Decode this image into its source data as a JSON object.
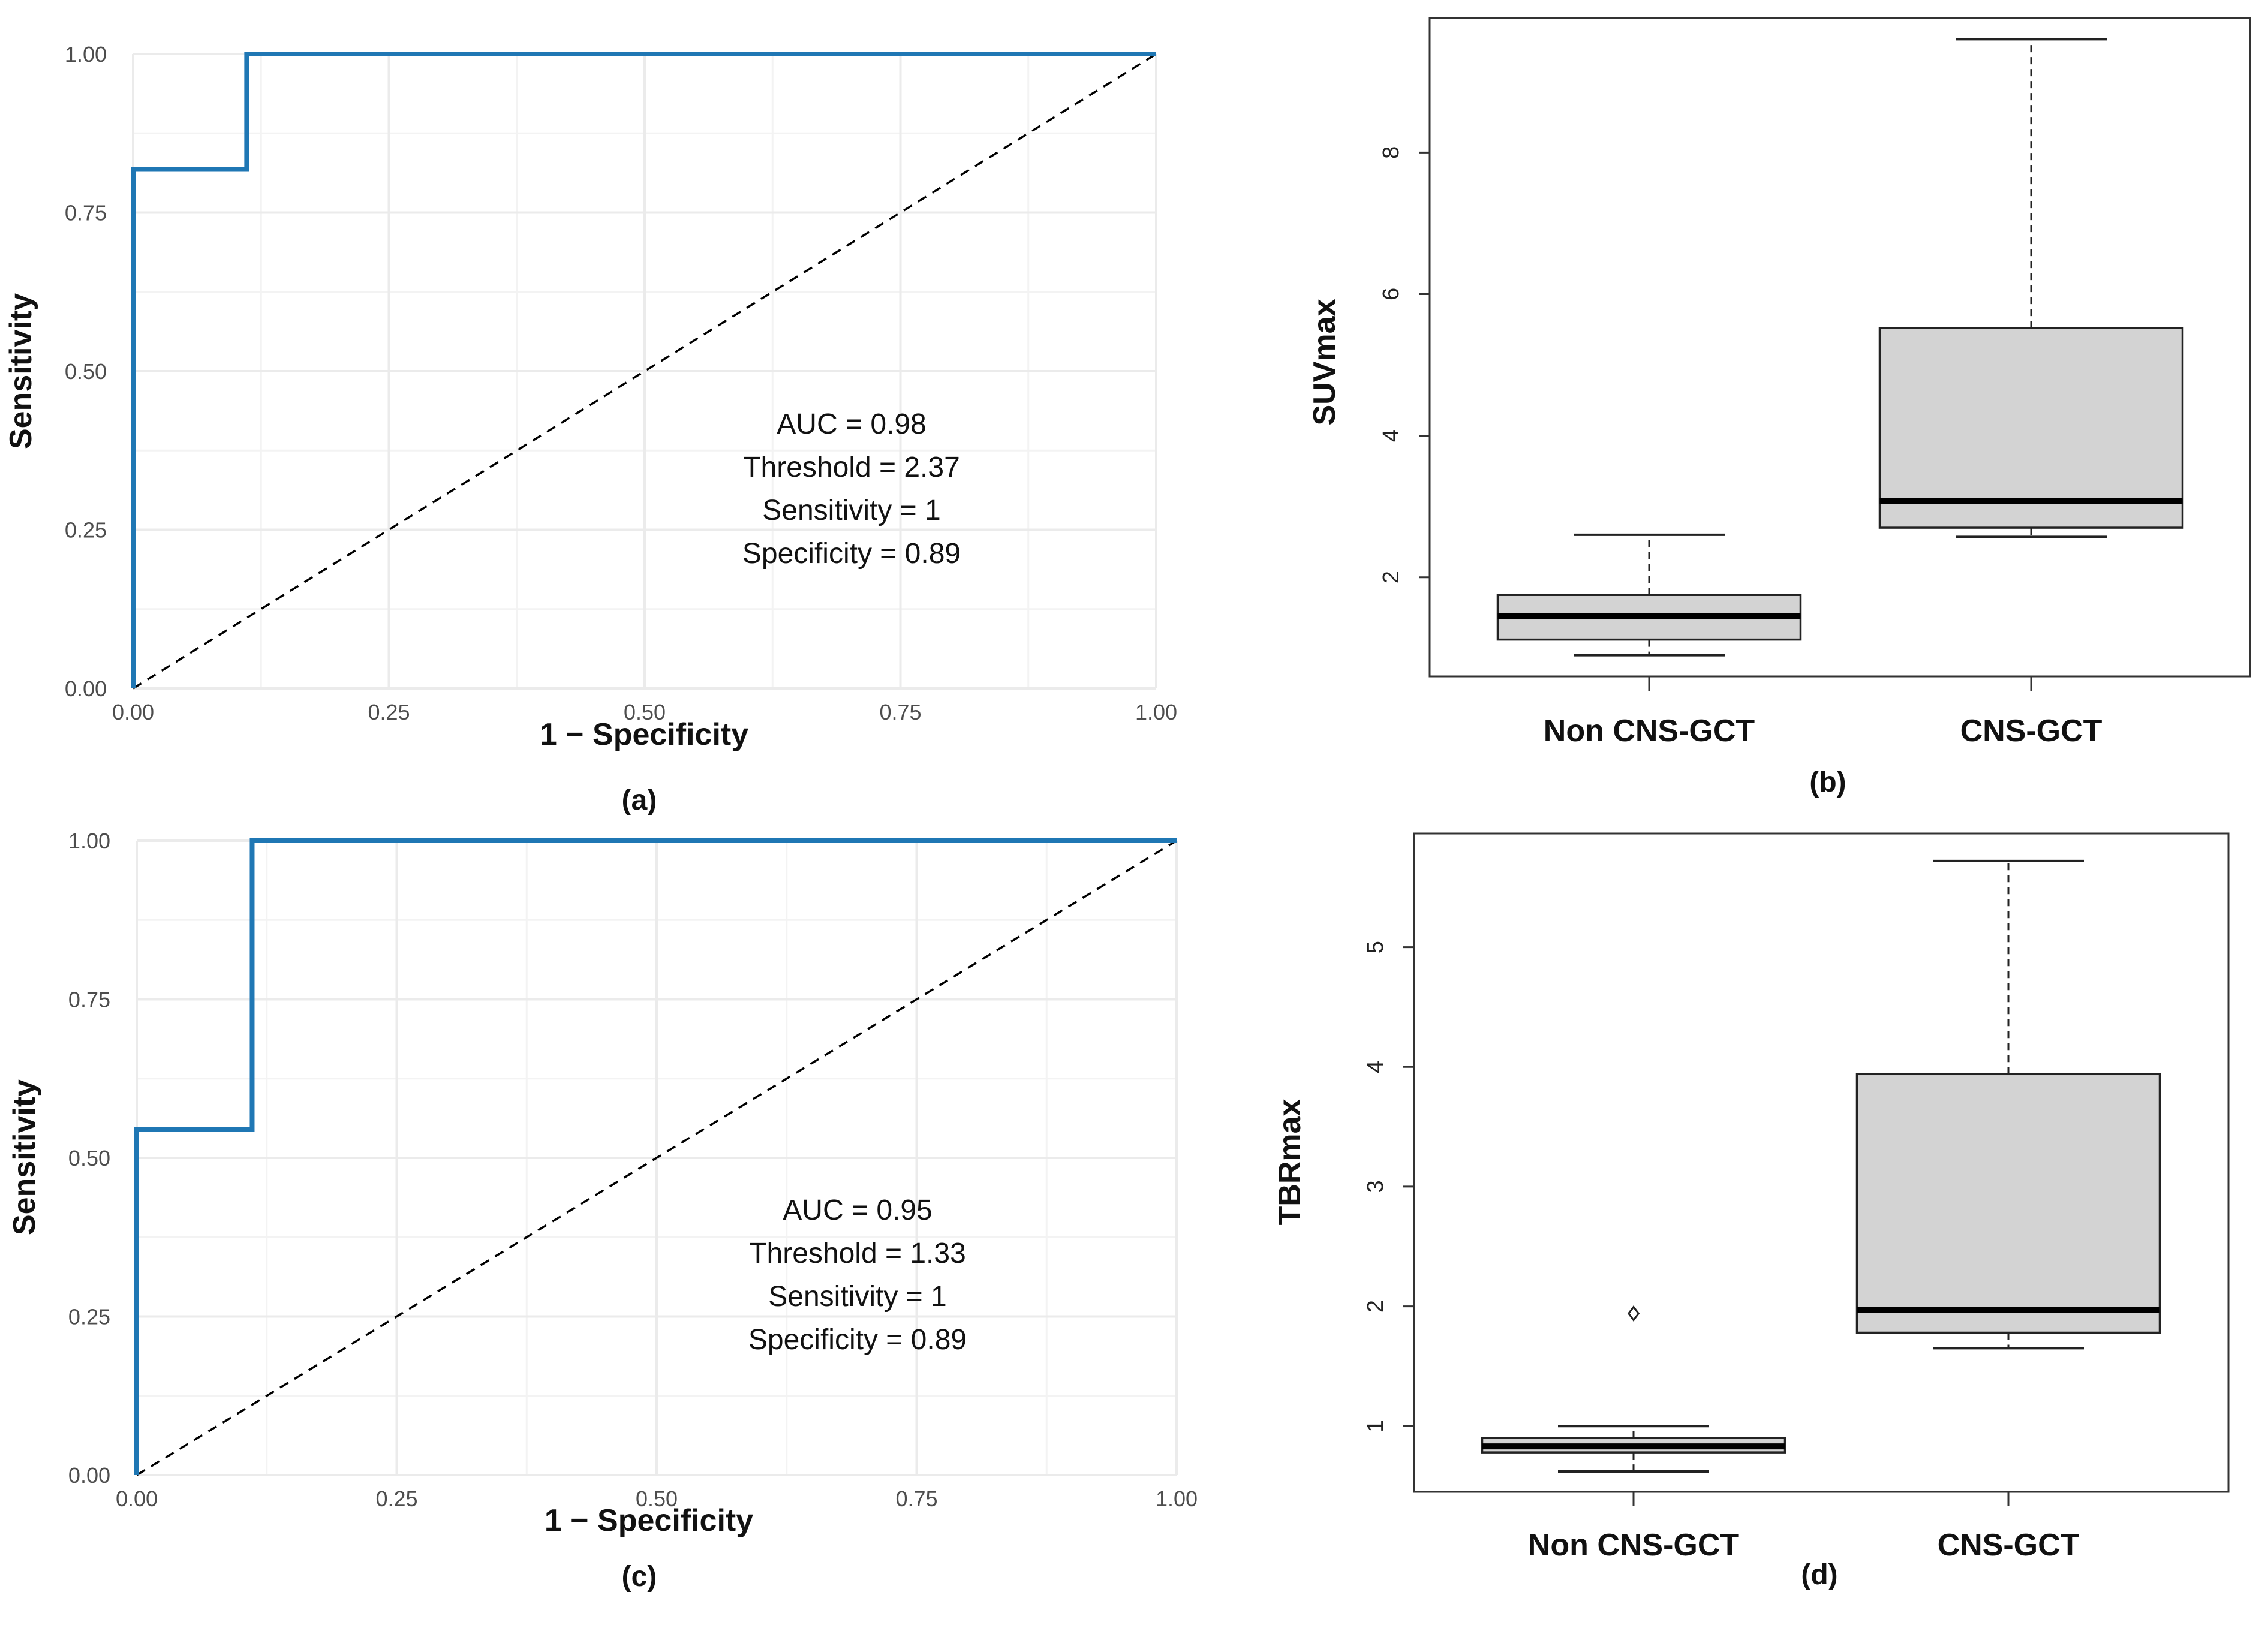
{
  "colors": {
    "roc_line": "#1f77b4",
    "diagonal": "#000000",
    "grid": "#ebebeb",
    "box_fill": "#d3d3d3",
    "box_stroke": "#222222"
  },
  "chart_data": [
    {
      "panel": "(a)",
      "type": "line",
      "xlabel": "1 − Specificity",
      "ylabel": "Sensitivity",
      "xlim": [
        0,
        1
      ],
      "ylim": [
        0,
        1
      ],
      "xticks": [
        "0.00",
        "0.25",
        "0.50",
        "0.75",
        "1.00"
      ],
      "yticks": [
        "0.00",
        "0.25",
        "0.50",
        "0.75",
        "1.00"
      ],
      "grid": true,
      "series": [
        {
          "name": "ROC",
          "x": [
            0,
            0,
            0.111,
            0.111,
            1
          ],
          "y": [
            0,
            0.818,
            0.818,
            1,
            1
          ]
        },
        {
          "name": "Reference",
          "style": "dashed",
          "x": [
            0,
            1
          ],
          "y": [
            0,
            1
          ]
        }
      ],
      "annotations": {
        "auc": "AUC =  0.98",
        "threshold": "Threshold = 2.37",
        "sensitivity": "Sensitivity = 1",
        "specificity": "Specificity = 0.89"
      }
    },
    {
      "panel": "(b)",
      "type": "box",
      "ylabel": "SUVmax",
      "ylim": [
        0.6,
        9.9
      ],
      "yticks": [
        2,
        4,
        6,
        8
      ],
      "categories": [
        "Non CNS-GCT",
        "CNS-GCT"
      ],
      "boxes": [
        {
          "whisker_low": 0.9,
          "q1": 1.12,
          "median": 1.45,
          "q3": 1.75,
          "whisker_high": 2.6,
          "outliers": []
        },
        {
          "whisker_low": 2.57,
          "q1": 2.7,
          "median": 3.08,
          "q3": 5.52,
          "whisker_high": 9.6,
          "outliers": []
        }
      ]
    },
    {
      "panel": "(c)",
      "type": "line",
      "xlabel": "1 − Specificity",
      "ylabel": "Sensitivity",
      "xlim": [
        0,
        1
      ],
      "ylim": [
        0,
        1
      ],
      "xticks": [
        "0.00",
        "0.25",
        "0.50",
        "0.75",
        "1.00"
      ],
      "yticks": [
        "0.00",
        "0.25",
        "0.50",
        "0.75",
        "1.00"
      ],
      "grid": true,
      "series": [
        {
          "name": "ROC",
          "x": [
            0,
            0,
            0.111,
            0.111,
            1
          ],
          "y": [
            0,
            0.545,
            0.545,
            1,
            1
          ]
        },
        {
          "name": "Reference",
          "style": "dashed",
          "x": [
            0,
            1
          ],
          "y": [
            0,
            1
          ]
        }
      ],
      "annotations": {
        "auc": "AUC =  0.95",
        "threshold": "Threshold = 1.33",
        "sensitivity": "Sensitivity = 1",
        "specificity": "Specificity = 0.89"
      }
    },
    {
      "panel": "(d)",
      "type": "box",
      "ylabel": "TBRmax",
      "ylim": [
        0.45,
        5.95
      ],
      "yticks": [
        1,
        2,
        3,
        4,
        5
      ],
      "categories": [
        "Non CNS-GCT",
        "CNS-GCT"
      ],
      "boxes": [
        {
          "whisker_low": 0.62,
          "q1": 0.78,
          "median": 0.83,
          "q3": 0.9,
          "whisker_high": 1.0,
          "outliers": [
            1.94
          ]
        },
        {
          "whisker_low": 1.65,
          "q1": 1.78,
          "median": 1.97,
          "q3": 3.94,
          "whisker_high": 5.72,
          "outliers": []
        }
      ]
    }
  ]
}
